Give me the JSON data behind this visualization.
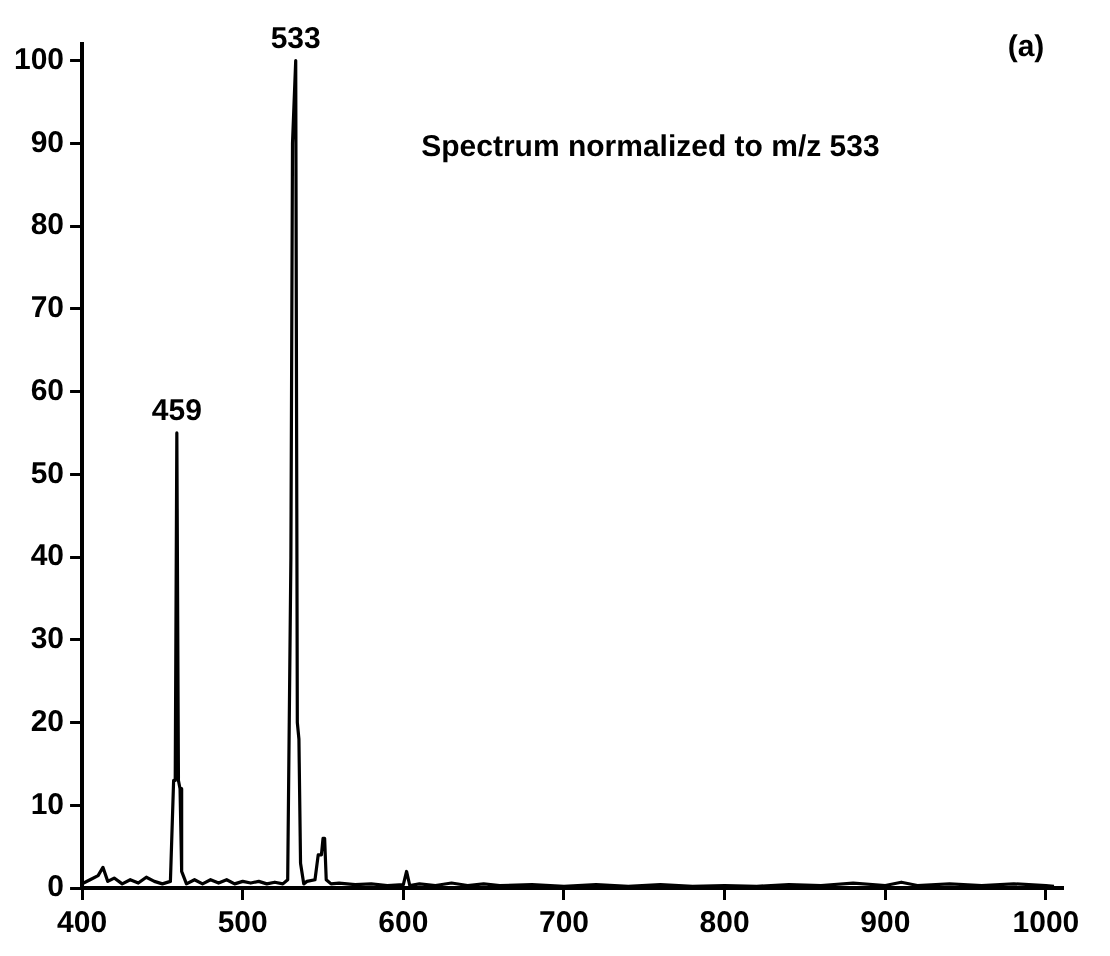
{
  "chart_data": {
    "type": "line",
    "color": "#000000",
    "x": [
      400,
      405,
      410,
      413,
      416,
      420,
      425,
      430,
      435,
      440,
      445,
      450,
      455,
      457,
      458,
      459,
      460,
      461,
      462,
      465,
      470,
      475,
      480,
      485,
      490,
      495,
      500,
      505,
      510,
      515,
      520,
      525,
      528,
      530,
      531,
      533,
      534,
      535,
      536,
      538,
      540,
      545,
      547,
      549,
      550,
      551,
      552,
      555,
      560,
      570,
      580,
      590,
      600,
      602,
      604,
      610,
      620,
      630,
      640,
      650,
      660,
      680,
      700,
      720,
      740,
      760,
      780,
      800,
      820,
      840,
      860,
      880,
      900,
      910,
      920,
      940,
      960,
      980,
      1000,
      1005
    ],
    "values": [
      0.5,
      1,
      1.5,
      2.5,
      0.8,
      1.2,
      0.5,
      1,
      0.6,
      1.3,
      0.8,
      0.5,
      0.8,
      13,
      13,
      55,
      13,
      12,
      2,
      0.5,
      1,
      0.5,
      1,
      0.6,
      1,
      0.5,
      0.8,
      0.6,
      0.8,
      0.5,
      0.7,
      0.5,
      1,
      40,
      90,
      100,
      20,
      18,
      3,
      0.5,
      0.8,
      1,
      4,
      4,
      6,
      6,
      1,
      0.5,
      0.6,
      0.4,
      0.5,
      0.3,
      0.4,
      2,
      0.3,
      0.5,
      0.3,
      0.6,
      0.3,
      0.5,
      0.3,
      0.4,
      0.2,
      0.4,
      0.2,
      0.4,
      0.2,
      0.3,
      0.2,
      0.4,
      0.3,
      0.6,
      0.3,
      0.7,
      0.3,
      0.5,
      0.3,
      0.5,
      0.3,
      0.2
    ],
    "xlim": [
      400,
      1010
    ],
    "ylim": [
      0,
      102
    ],
    "xticks": [
      400,
      500,
      600,
      700,
      800,
      900,
      1000
    ],
    "yticks": [
      0,
      10,
      20,
      30,
      40,
      50,
      60,
      70,
      80,
      90,
      100
    ],
    "grid": false,
    "legend": false,
    "marker": "none",
    "line_style": "solid",
    "annotations": [
      {
        "text": "533",
        "x": 533,
        "y": 100
      },
      {
        "text": "459",
        "x": 459,
        "y": 55
      },
      "Spectrum normalized to m/z 533",
      "(a)"
    ]
  }
}
